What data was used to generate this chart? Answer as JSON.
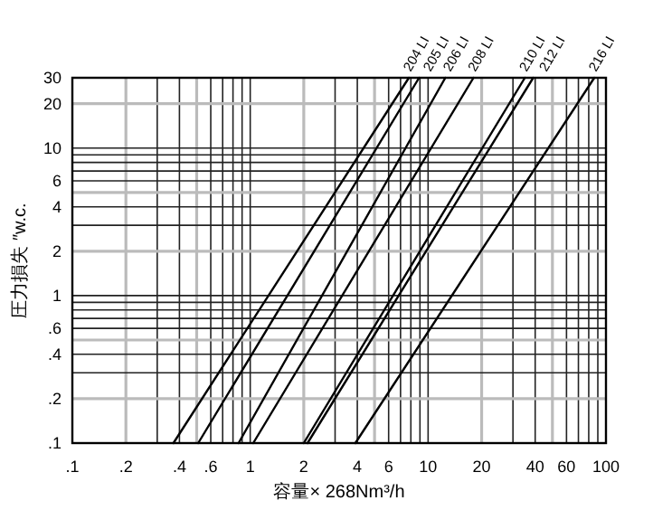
{
  "chart_data": {
    "type": "line",
    "xlabel": "容量× 268Nm³/h",
    "ylabel": "圧力損失 ″w.c.",
    "log": "xy",
    "grid": true,
    "line_style": "solid",
    "xlim": [
      0.1,
      100
    ],
    "ylim": [
      0.1,
      30
    ],
    "xticks": [
      {
        "value": 0.1,
        "label": ".1"
      },
      {
        "value": 0.2,
        "label": ".2"
      },
      {
        "value": 0.4,
        "label": ".4"
      },
      {
        "value": 0.6,
        "label": ".6"
      },
      1,
      2,
      4,
      6,
      10,
      20,
      40,
      60,
      100
    ],
    "yticks": [
      {
        "value": 0.1,
        "label": ".1"
      },
      {
        "value": 0.2,
        "label": ".2"
      },
      {
        "value": 0.4,
        "label": ".4"
      },
      {
        "value": 0.6,
        "label": ".6"
      },
      1,
      2,
      4,
      6,
      10,
      20,
      30
    ],
    "series": [
      {
        "name": "204 LI",
        "color": "#000000",
        "x": [
          0.37,
          7.8
        ],
        "values": [
          0.1,
          30
        ]
      },
      {
        "name": "205 LI",
        "color": "#000000",
        "x": [
          0.51,
          8.9
        ],
        "values": [
          0.1,
          30
        ]
      },
      {
        "name": "206 LI",
        "color": "#000000",
        "x": [
          0.86,
          12.5
        ],
        "values": [
          0.1,
          30
        ]
      },
      {
        "name": "208 LI",
        "color": "#000000",
        "x": [
          1.04,
          18
        ],
        "values": [
          0.1,
          30
        ]
      },
      {
        "name": "210 LI",
        "color": "#000000",
        "x": [
          2.0,
          35
        ],
        "values": [
          0.1,
          30
        ]
      },
      {
        "name": "212 LI",
        "color": "#000000",
        "x": [
          2.1,
          39
        ],
        "values": [
          0.1,
          30
        ]
      },
      {
        "name": "216 LI",
        "color": "#000000",
        "x": [
          3.9,
          86
        ],
        "values": [
          0.1,
          30
        ]
      }
    ]
  }
}
